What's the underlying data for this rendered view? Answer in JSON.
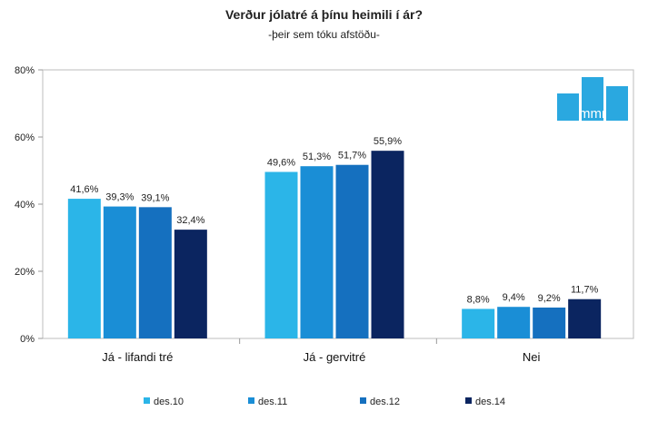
{
  "chart_data": {
    "type": "bar",
    "title": "Verður jólatré á þínu heimili í ár?",
    "subtitle": "-þeir sem tóku afstöðu-",
    "categories": [
      "Já - lifandi tré",
      "Já - gervitré",
      "Nei"
    ],
    "series": [
      {
        "name": "des.10",
        "color": "#2bb5e8",
        "values": [
          41.6,
          49.6,
          8.8
        ],
        "labels": [
          "41,6%",
          "49,6%",
          "8,8%"
        ]
      },
      {
        "name": "des.11",
        "color": "#1a8ed6",
        "values": [
          39.3,
          51.3,
          9.4
        ],
        "labels": [
          "39,3%",
          "51,3%",
          "9,4%"
        ]
      },
      {
        "name": "des.12",
        "color": "#1570bf",
        "values": [
          39.1,
          51.7,
          9.2
        ],
        "labels": [
          "39,1%",
          "51,7%",
          "9,2%"
        ]
      },
      {
        "name": "des.14",
        "color": "#0b2560",
        "values": [
          32.4,
          55.9,
          11.7
        ],
        "labels": [
          "32,4%",
          "55,9%",
          "11,7%"
        ]
      }
    ],
    "ylim": [
      0,
      80
    ],
    "yticks": [
      0,
      20,
      40,
      60,
      80
    ],
    "ytick_labels": [
      "0%",
      "20%",
      "40%",
      "60%",
      "80%"
    ],
    "grid": false,
    "legend": "bottom"
  },
  "logo": {
    "text": "mmr",
    "color": "#2aa8e0"
  }
}
